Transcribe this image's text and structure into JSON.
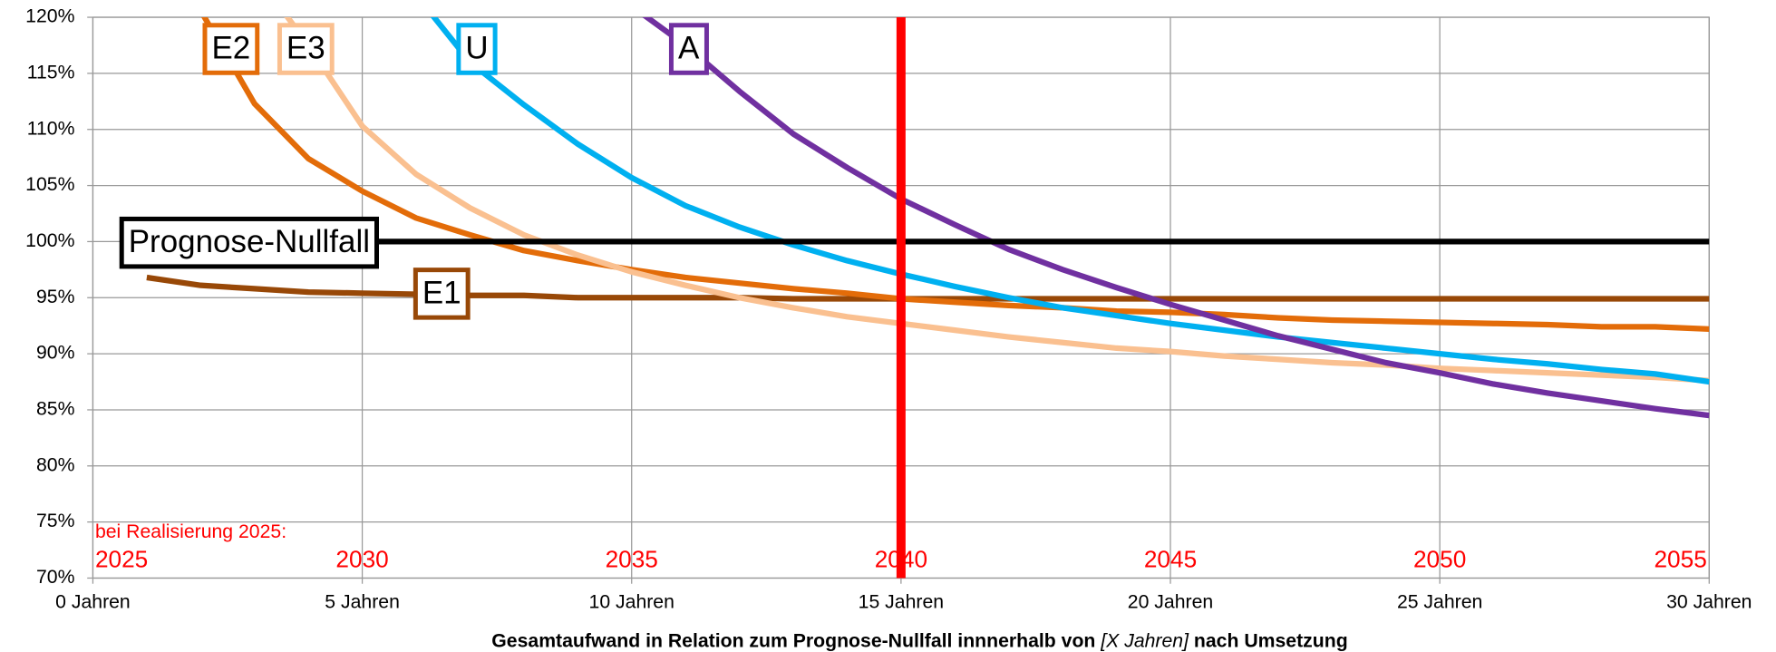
{
  "chart_data": {
    "type": "line",
    "x": [
      1,
      2,
      3,
      4,
      5,
      6,
      7,
      8,
      9,
      10,
      11,
      12,
      13,
      14,
      15,
      16,
      17,
      18,
      19,
      20,
      21,
      22,
      23,
      24,
      25,
      26,
      27,
      28,
      29,
      30
    ],
    "series": [
      {
        "name": "Prognose-Nullfall",
        "color": "#000000",
        "values": [
          100,
          100,
          100,
          100,
          100,
          100,
          100,
          100,
          100,
          100,
          100,
          100,
          100,
          100,
          100,
          100,
          100,
          100,
          100,
          100,
          100,
          100,
          100,
          100,
          100,
          100,
          100,
          100,
          100,
          100
        ]
      },
      {
        "name": "E1",
        "color": "#984807",
        "values": [
          96.8,
          96.1,
          95.8,
          95.5,
          95.4,
          95.3,
          95.2,
          95.2,
          95.0,
          95.0,
          95.0,
          95.0,
          94.9,
          94.9,
          94.9,
          94.9,
          94.9,
          94.9,
          94.9,
          94.9,
          94.9,
          94.9,
          94.9,
          94.9,
          94.9,
          94.9,
          94.9,
          94.9,
          94.9,
          94.9
        ]
      },
      {
        "name": "E2",
        "color": "#e36c09",
        "values": [
          null,
          120.6,
          112.3,
          107.4,
          104.5,
          102.1,
          100.6,
          99.2,
          98.3,
          97.5,
          96.8,
          96.3,
          95.8,
          95.4,
          94.9,
          94.6,
          94.3,
          94.1,
          93.8,
          93.7,
          93.5,
          93.2,
          93.0,
          92.9,
          92.8,
          92.7,
          92.6,
          92.4,
          92.4,
          92.2
        ]
      },
      {
        "name": "E3",
        "color": "#fac090",
        "values": [
          null,
          null,
          124,
          117.5,
          110.3,
          106,
          103,
          100.6,
          98.8,
          97.3,
          96.1,
          95,
          94.1,
          93.3,
          92.7,
          92.1,
          91.5,
          91,
          90.5,
          90.2,
          89.8,
          89.5,
          89.2,
          89,
          88.7,
          88.5,
          88.3,
          88.1,
          87.9,
          87.6
        ]
      },
      {
        "name": "U",
        "color": "#00b0f0",
        "values": [
          null,
          null,
          null,
          null,
          null,
          122,
          116,
          112.2,
          108.7,
          105.7,
          103.2,
          101.3,
          99.7,
          98.3,
          97.1,
          96,
          95,
          94.1,
          93.4,
          92.7,
          92.1,
          91.5,
          91,
          90.5,
          90,
          89.5,
          89.1,
          88.6,
          88.2,
          87.5
        ]
      },
      {
        "name": "A",
        "color": "#7030a0",
        "values": [
          null,
          null,
          null,
          null,
          null,
          null,
          null,
          null,
          null,
          121,
          117.5,
          113.4,
          109.6,
          106.6,
          103.8,
          101.5,
          99.3,
          97.5,
          95.9,
          94.4,
          93,
          91.6,
          90.4,
          89.2,
          88.3,
          87.3,
          86.5,
          85.8,
          85.1,
          84.5
        ]
      }
    ],
    "xlim": [
      0,
      30
    ],
    "xticks": [
      {
        "value": 0,
        "label": "0 Jahren"
      },
      {
        "value": 5,
        "label": "5 Jahren"
      },
      {
        "value": 10,
        "label": "10 Jahren"
      },
      {
        "value": 15,
        "label": "15 Jahren"
      },
      {
        "value": 20,
        "label": "20 Jahren"
      },
      {
        "value": 25,
        "label": "25 Jahren"
      },
      {
        "value": 30,
        "label": "30 Jahren"
      }
    ],
    "ylim": [
      70,
      120
    ],
    "yticks": [
      {
        "value": 70,
        "label": "70%"
      },
      {
        "value": 75,
        "label": "75%"
      },
      {
        "value": 80,
        "label": "80%"
      },
      {
        "value": 85,
        "label": "85%"
      },
      {
        "value": 90,
        "label": "90%"
      },
      {
        "value": 95,
        "label": "95%"
      },
      {
        "value": 100,
        "label": "100%"
      },
      {
        "value": 105,
        "label": "105%"
      },
      {
        "value": 110,
        "label": "110%"
      },
      {
        "value": 115,
        "label": "115%"
      },
      {
        "value": 120,
        "label": "120%"
      }
    ],
    "x2lim": [
      2025,
      2055
    ],
    "x2ticks": [
      2025,
      2030,
      2035,
      2040,
      2045,
      2050,
      2055
    ],
    "x2_annotation": "bei Realisierung 2025:",
    "vline": {
      "x": 15,
      "color": "#ff0000"
    },
    "xlabel": [
      "Gesamtaufwand in Relation zum Prognose-Nullfall innnerhalb von ",
      "[X Jahren]",
      " nach  Umsetzung"
    ],
    "grid": true
  }
}
